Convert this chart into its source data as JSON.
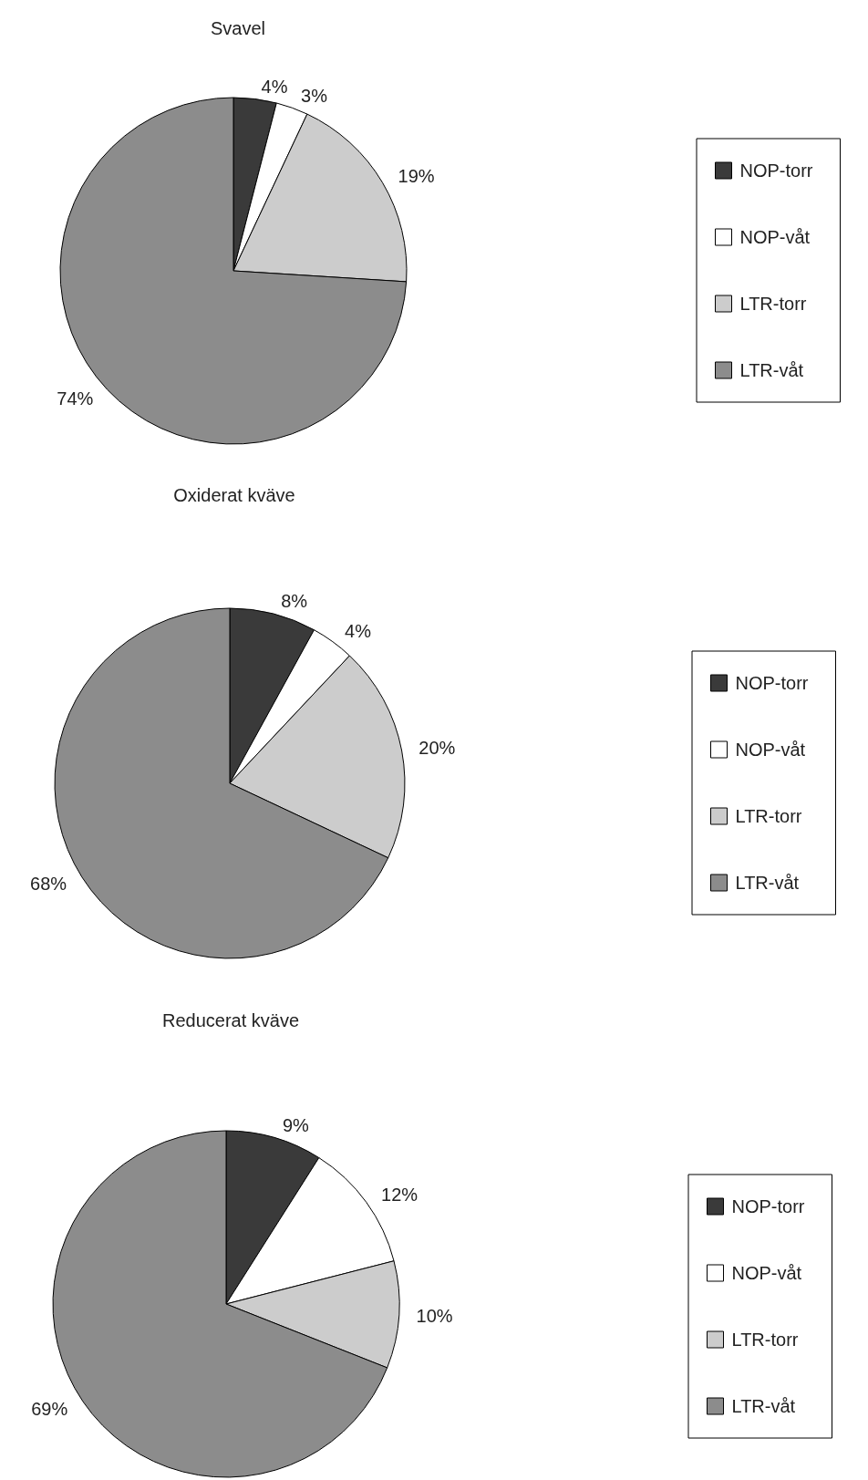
{
  "chart_data": [
    {
      "type": "pie",
      "title": "Svavel",
      "categories": [
        "NOP-torr",
        "NOP-våt",
        "LTR-torr",
        "LTR-våt"
      ],
      "values": [
        4,
        3,
        19,
        74
      ],
      "value_labels": [
        "4%",
        "3%",
        "19%",
        "74%"
      ],
      "colors": [
        "#3a3a3a",
        "#ffffff",
        "#cccccc",
        "#8c8c8c"
      ],
      "legend": "right"
    },
    {
      "type": "pie",
      "title": "Oxiderat kväve",
      "categories": [
        "NOP-torr",
        "NOP-våt",
        "LTR-torr",
        "LTR-våt"
      ],
      "values": [
        8,
        4,
        20,
        68
      ],
      "value_labels": [
        "8%",
        "4%",
        "20%",
        "68%"
      ],
      "colors": [
        "#3a3a3a",
        "#ffffff",
        "#cccccc",
        "#8c8c8c"
      ],
      "legend": "right"
    },
    {
      "type": "pie",
      "title": "Reducerat kväve",
      "categories": [
        "NOP-torr",
        "NOP-våt",
        "LTR-torr",
        "LTR-våt"
      ],
      "values": [
        9,
        12,
        10,
        69
      ],
      "value_labels": [
        "9%",
        "12%",
        "10%",
        "69%"
      ],
      "colors": [
        "#3a3a3a",
        "#ffffff",
        "#cccccc",
        "#8c8c8c"
      ],
      "legend": "right"
    }
  ]
}
